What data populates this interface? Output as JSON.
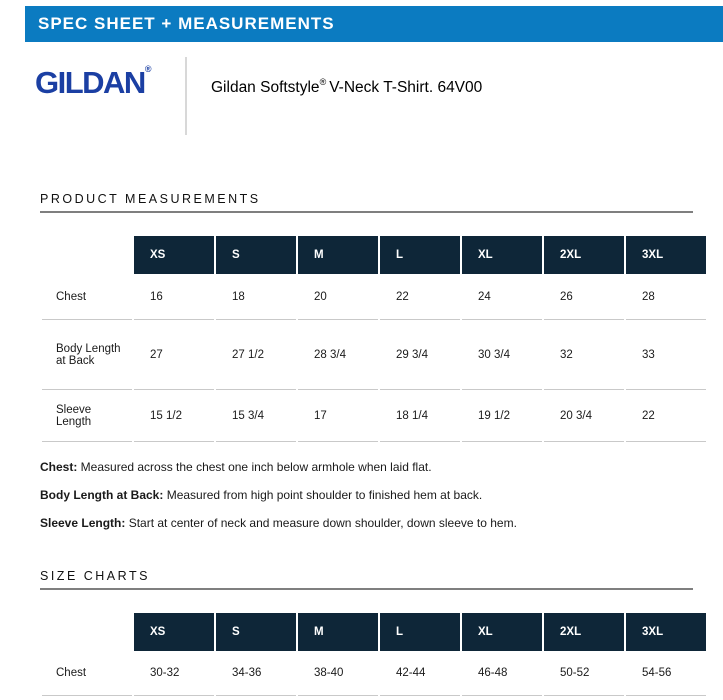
{
  "banner": {
    "title": "SPEC SHEET + MEASUREMENTS"
  },
  "brand": {
    "logo_text": "GILDAN",
    "logo_reg": "®",
    "title_pre": "Gildan Softstyle",
    "title_reg": "®",
    "title_post": "V-Neck T-Shirt. 64V00"
  },
  "product_measurements": {
    "heading": "PRODUCT MEASUREMENTS",
    "table": {
      "columns": [
        "XS",
        "S",
        "M",
        "L",
        "XL",
        "2XL",
        "3XL"
      ],
      "rows": [
        {
          "label": "Chest",
          "values": [
            "16",
            "18",
            "20",
            "22",
            "24",
            "26",
            "28"
          ]
        },
        {
          "label": "Body Length at Back",
          "values": [
            "27",
            "27 1/2",
            "28 3/4",
            "29 3/4",
            "30 3/4",
            "32",
            "33"
          ]
        },
        {
          "label": "Sleeve Length",
          "values": [
            "15 1/2",
            "15 3/4",
            "17",
            "18 1/4",
            "19 1/2",
            "20 3/4",
            "22"
          ]
        }
      ]
    },
    "notes": [
      {
        "term": "Chest:",
        "text": " Measured across the chest one inch below armhole when laid flat."
      },
      {
        "term": "Body Length at Back:",
        "text": " Measured from high point shoulder to finished hem at back."
      },
      {
        "term": "Sleeve Length:",
        "text": " Start at center of neck and measure down shoulder, down sleeve to hem."
      }
    ]
  },
  "size_charts": {
    "heading": "SIZE CHARTS",
    "table": {
      "columns": [
        "XS",
        "S",
        "M",
        "L",
        "XL",
        "2XL",
        "3XL"
      ],
      "rows": [
        {
          "label": "Chest",
          "values": [
            "30-32",
            "34-36",
            "38-40",
            "42-44",
            "46-48",
            "50-52",
            "54-56"
          ]
        }
      ]
    }
  },
  "colors": {
    "banner-blue": "#0b7bc1",
    "logo-blue": "#1b3fa3",
    "table-header-navy": "#0e2638"
  }
}
